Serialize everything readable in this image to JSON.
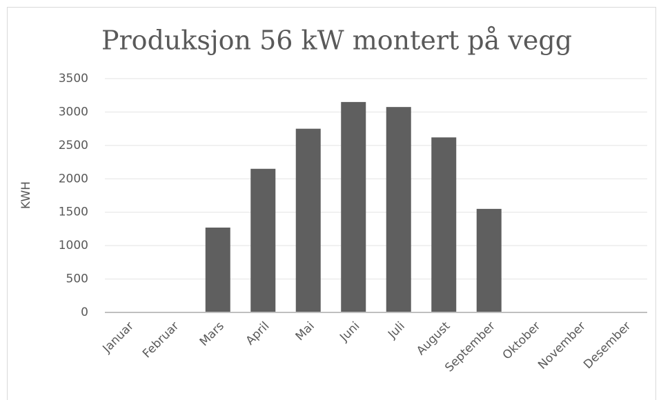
{
  "chart_data": {
    "type": "bar",
    "title": "Produksjon 56 kW montert på vegg",
    "y_label": "KWH",
    "categories": [
      "Januar",
      "Februar",
      "Mars",
      "April",
      "Mai",
      "Juni",
      "Juli",
      "August",
      "September",
      "Oktober",
      "November",
      "Desember"
    ],
    "values": [
      0,
      0,
      1270,
      2150,
      2750,
      3150,
      3075,
      2620,
      1550,
      0,
      0,
      0
    ],
    "color": "#5f5f5f",
    "ylim": [
      0,
      3500
    ],
    "yticks": [
      0,
      500,
      1000,
      1500,
      2000,
      2500,
      3000,
      3500
    ],
    "grid": true
  }
}
